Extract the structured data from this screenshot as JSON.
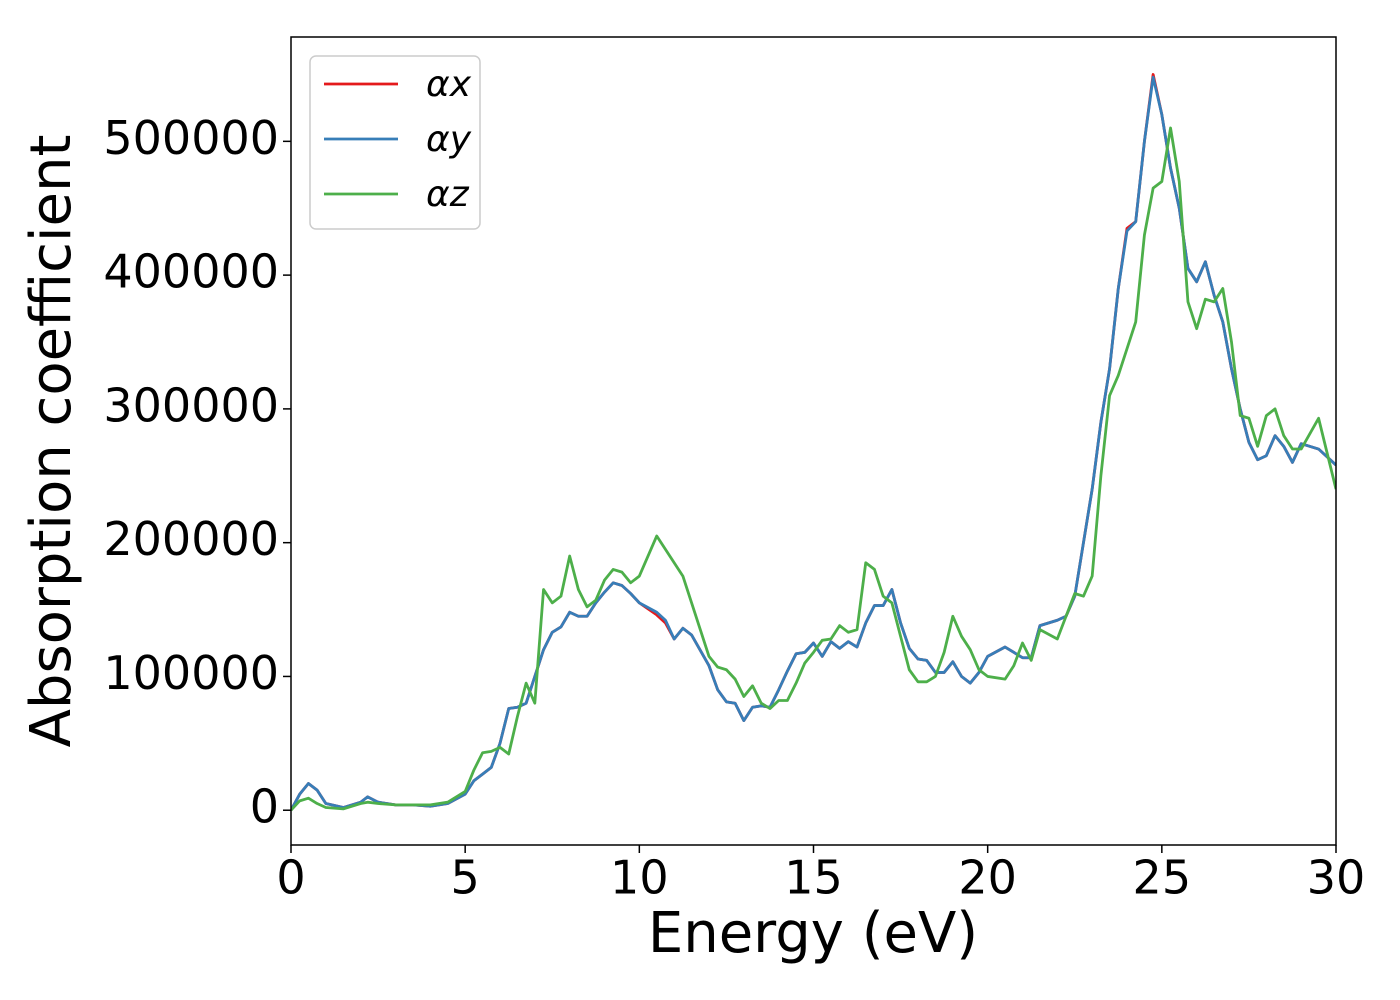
{
  "chart_data": {
    "type": "line",
    "xlabel": "Energy (eV)",
    "ylabel": "Absorption coefficient",
    "xlim": [
      0,
      30
    ],
    "ylim": [
      -26000,
      578000
    ],
    "xticks": [
      0,
      5,
      10,
      15,
      20,
      25,
      30
    ],
    "yticks": [
      0,
      100000,
      200000,
      300000,
      400000,
      500000
    ],
    "legend": "upper left",
    "x": [
      0,
      0.25,
      0.5,
      0.75,
      1,
      1.5,
      2,
      2.2,
      2.5,
      3,
      3.5,
      4,
      4.5,
      5,
      5.25,
      5.5,
      5.75,
      6,
      6.25,
      6.5,
      6.75,
      7,
      7.25,
      7.5,
      7.75,
      8,
      8.25,
      8.5,
      8.75,
      9,
      9.25,
      9.5,
      9.75,
      10,
      10.5,
      10.75,
      11,
      11.25,
      11.5,
      12,
      12.25,
      12.5,
      12.75,
      13,
      13.25,
      13.5,
      13.75,
      14,
      14.25,
      14.5,
      14.75,
      15,
      15.25,
      15.5,
      15.75,
      16,
      16.25,
      16.5,
      16.75,
      17,
      17.25,
      17.5,
      17.75,
      18,
      18.25,
      18.5,
      18.75,
      19,
      19.25,
      19.5,
      19.75,
      20,
      20.5,
      20.75,
      21,
      21.25,
      21.5,
      22,
      22.25,
      22.5,
      22.75,
      23,
      23.25,
      23.5,
      23.75,
      24,
      24.25,
      24.5,
      24.75,
      25,
      25.25,
      25.5,
      25.75,
      26,
      26.25,
      26.5,
      26.75,
      27,
      27.25,
      27.5,
      27.75,
      28,
      28.25,
      28.5,
      28.75,
      29,
      29.5,
      30
    ],
    "series": [
      {
        "name": "αx",
        "color": "#e41a1c",
        "values": [
          0,
          12000,
          20000,
          15000,
          5000,
          2000,
          6000,
          10000,
          6000,
          4000,
          4000,
          3000,
          5000,
          12000,
          22000,
          27000,
          32000,
          50000,
          76000,
          77000,
          80000,
          100000,
          120000,
          133000,
          137000,
          148000,
          145000,
          145000,
          155000,
          163000,
          170000,
          168000,
          162000,
          155000,
          146000,
          140000,
          128000,
          136000,
          131000,
          108000,
          90000,
          81000,
          80000,
          67000,
          77000,
          78000,
          77000,
          90000,
          104000,
          117000,
          118000,
          125000,
          115000,
          126000,
          121000,
          126000,
          122000,
          140000,
          153000,
          153000,
          165000,
          140000,
          121000,
          113000,
          112000,
          103000,
          103000,
          111000,
          100000,
          95000,
          103000,
          115000,
          122000,
          118000,
          114000,
          114000,
          138000,
          142000,
          145000,
          160000,
          200000,
          240000,
          290000,
          330000,
          390000,
          435000,
          440000,
          500000,
          550000,
          520000,
          480000,
          450000,
          405000,
          395000,
          410000,
          385000,
          365000,
          330000,
          300000,
          275000,
          262000,
          265000,
          280000,
          272000,
          260000,
          274000,
          270000,
          258000
        ]
      },
      {
        "name": "αy",
        "color": "#377eb8",
        "values": [
          0,
          12000,
          20000,
          15000,
          5000,
          2000,
          6000,
          10000,
          6000,
          4000,
          4000,
          3000,
          5000,
          12000,
          22000,
          27000,
          32000,
          50000,
          76000,
          77000,
          80000,
          100000,
          120000,
          133000,
          137000,
          148000,
          145000,
          145000,
          155000,
          163000,
          170000,
          168000,
          162000,
          155000,
          148000,
          142000,
          128000,
          136000,
          131000,
          108000,
          90000,
          81000,
          80000,
          67000,
          77000,
          78000,
          77000,
          90000,
          104000,
          117000,
          118000,
          125000,
          115000,
          126000,
          121000,
          126000,
          122000,
          140000,
          153000,
          153000,
          165000,
          140000,
          121000,
          113000,
          112000,
          103000,
          103000,
          111000,
          100000,
          95000,
          103000,
          115000,
          122000,
          118000,
          114000,
          114000,
          138000,
          142000,
          145000,
          160000,
          200000,
          240000,
          290000,
          330000,
          390000,
          433000,
          440000,
          500000,
          548000,
          520000,
          480000,
          450000,
          405000,
          395000,
          410000,
          385000,
          365000,
          330000,
          300000,
          275000,
          262000,
          265000,
          280000,
          272000,
          260000,
          274000,
          270000,
          258000
        ]
      },
      {
        "name": "αz",
        "color": "#4daf4a",
        "values": [
          0,
          7000,
          9000,
          5000,
          2000,
          1000,
          5000,
          6000,
          5000,
          4000,
          4000,
          4000,
          6000,
          14000,
          30000,
          43000,
          44000,
          47000,
          42000,
          70000,
          95000,
          80000,
          165000,
          155000,
          160000,
          190000,
          165000,
          152000,
          157000,
          172000,
          180000,
          178000,
          170000,
          175000,
          205000,
          195000,
          185000,
          175000,
          155000,
          115000,
          107000,
          105000,
          98000,
          85000,
          93000,
          80000,
          76000,
          82000,
          82000,
          95000,
          110000,
          118000,
          127000,
          128000,
          138000,
          133000,
          135000,
          185000,
          180000,
          160000,
          155000,
          130000,
          105000,
          96000,
          96000,
          100000,
          118000,
          145000,
          130000,
          120000,
          105000,
          100000,
          98000,
          108000,
          125000,
          112000,
          135000,
          128000,
          145000,
          162000,
          160000,
          175000,
          250000,
          310000,
          325000,
          345000,
          365000,
          430000,
          465000,
          470000,
          510000,
          470000,
          380000,
          360000,
          382000,
          380000,
          390000,
          350000,
          295000,
          293000,
          272000,
          295000,
          300000,
          280000,
          270000,
          270000,
          293000,
          240000
        ]
      }
    ]
  }
}
